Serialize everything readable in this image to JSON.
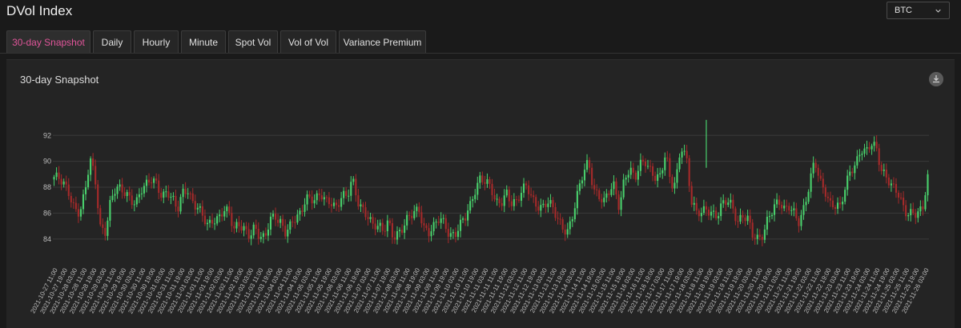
{
  "header": {
    "title": "DVol Index"
  },
  "asset_select": {
    "value": "BTC",
    "icon": "chevron-down-icon"
  },
  "tabs": [
    {
      "label": "30-day Snapshot",
      "active": true
    },
    {
      "label": "Daily",
      "active": false
    },
    {
      "label": "Hourly",
      "active": false
    },
    {
      "label": "Minute",
      "active": false
    },
    {
      "label": "Spot Vol",
      "active": false
    },
    {
      "label": "Vol of Vol",
      "active": false
    },
    {
      "label": "Variance Premium",
      "active": false
    }
  ],
  "panel": {
    "title": "30-day Snapshot",
    "download_icon": "download-icon"
  },
  "colors": {
    "accent": "#e0559a",
    "up": "#49d06c",
    "down": "#a52a2a",
    "grid": "#3a3a3a"
  },
  "chart_data": {
    "type": "candlestick",
    "title": "",
    "xlabel": "",
    "ylabel": "",
    "ylim": [
      83,
      93.5
    ],
    "y_ticks": [
      84,
      86,
      88,
      90,
      92
    ],
    "grid": true,
    "x_tick_labels": [
      "2021-10-27 11:00",
      "2021-10-27 19:00",
      "2021-10-28 03:00",
      "2021-10-28 11:00",
      "2021-10-28 19:00",
      "2021-10-29 03:00",
      "2021-10-29 11:00",
      "2021-10-29 19:00",
      "2021-10-30 03:00",
      "2021-10-30 11:00",
      "2021-10-30 19:00",
      "2021-10-31 03:00",
      "2021-10-31 11:00",
      "2021-10-31 19:00",
      "2021-11-01 03:00",
      "2021-11-01 11:00",
      "2021-11-01 19:00",
      "2021-11-02 03:00",
      "2021-11-02 11:00",
      "2021-11-02 19:00",
      "2021-11-03 03:00",
      "2021-11-03 11:00",
      "2021-11-03 19:00",
      "2021-11-04 03:00",
      "2021-11-04 11:00",
      "2021-11-04 19:00",
      "2021-11-05 03:00",
      "2021-11-05 11:00",
      "2021-11-05 19:00",
      "2021-11-06 03:00",
      "2021-11-06 11:00",
      "2021-11-06 19:00",
      "2021-11-07 03:00",
      "2021-11-07 11:00",
      "2021-11-07 19:00",
      "2021-11-08 03:00",
      "2021-11-08 11:00",
      "2021-11-08 19:00",
      "2021-11-09 03:00",
      "2021-11-09 11:00",
      "2021-11-09 19:00",
      "2021-11-10 03:00",
      "2021-11-10 11:00",
      "2021-11-10 19:00",
      "2021-11-11 03:00",
      "2021-11-11 11:00",
      "2021-11-11 19:00",
      "2021-11-12 03:00",
      "2021-11-12 11:00",
      "2021-11-12 19:00",
      "2021-11-13 03:00",
      "2021-11-13 11:00",
      "2021-11-13 19:00",
      "2021-11-14 03:00",
      "2021-11-14 11:00",
      "2021-11-14 19:00",
      "2021-11-15 03:00",
      "2021-11-15 11:00",
      "2021-11-15 19:00",
      "2021-11-16 03:00",
      "2021-11-16 11:00",
      "2021-11-16 19:00",
      "2021-11-17 03:00",
      "2021-11-17 11:00",
      "2021-11-17 19:00",
      "2021-11-18 03:00",
      "2021-11-18 11:00",
      "2021-11-18 19:00",
      "2021-11-19 03:00",
      "2021-11-19 11:00",
      "2021-11-19 19:00",
      "2021-11-20 03:00",
      "2021-11-20 11:00",
      "2021-11-20 19:00",
      "2021-11-21 03:00",
      "2021-11-21 11:00",
      "2021-11-21 19:00",
      "2021-11-22 03:00",
      "2021-11-22 11:00",
      "2021-11-22 19:00",
      "2021-11-23 03:00",
      "2021-11-23 11:00",
      "2021-11-23 19:00",
      "2021-11-24 03:00",
      "2021-11-24 11:00",
      "2021-11-24 19:00",
      "2021-11-25 03:00",
      "2021-11-25 11:00",
      "2021-11-25 19:00",
      "2021-11-26 03:00"
    ],
    "close_anchors": [
      88.8,
      88.5,
      88.0,
      87.5,
      86.5,
      86.2,
      87.5,
      90.0,
      88.5,
      85.0,
      84.8,
      87.0,
      87.8,
      87.6,
      87.5,
      87.2,
      87.0,
      87.8,
      88.0,
      88.5,
      88.3,
      87.5,
      87.8,
      87.0,
      86.0,
      87.5,
      88.0,
      87.0,
      86.5,
      85.5,
      84.8,
      85.5,
      85.8,
      86.5,
      86.0,
      84.5,
      85.0,
      84.9,
      84.5,
      85.0,
      84.0,
      83.8,
      85.5,
      86.0,
      85.5,
      84.5,
      84.8,
      85.5,
      86.0,
      87.5,
      87.2,
      87.0,
      87.2,
      86.8,
      87.0,
      86.6,
      87.5,
      87.0,
      88.5,
      87.0,
      86.5,
      86.0,
      85.0,
      84.8,
      84.5,
      85.5,
      84.4,
      84.5,
      84.8,
      85.5,
      86.0,
      86.5,
      85.0,
      84.5,
      84.8,
      85.5,
      85.2,
      84.5,
      84.5,
      85.0,
      85.5,
      86.5,
      88.0,
      89.0,
      88.5,
      87.8,
      86.5,
      86.8,
      87.8,
      87.0,
      86.8,
      87.5,
      88.0,
      87.2,
      86.8,
      86.5,
      86.8,
      86.2,
      85.5,
      85.0,
      84.8,
      86.0,
      87.5,
      89.0,
      90.0,
      88.0,
      87.5,
      86.8,
      87.5,
      88.0,
      86.5,
      89.0,
      89.5,
      88.5,
      89.5,
      90.0,
      89.5,
      89.0,
      88.8,
      90.5,
      88.0,
      88.5,
      91.5,
      90.5,
      86.8,
      85.8,
      86.0,
      86.5,
      86.2,
      85.8,
      86.5,
      86.8,
      86.5,
      85.5,
      86.0,
      85.5,
      84.0,
      83.8,
      84.5,
      86.0,
      86.5,
      86.8,
      86.0,
      86.5,
      86.2,
      85.5,
      86.5,
      88.0,
      90.0,
      88.5,
      88.0,
      86.8,
      86.5,
      86.2,
      88.0,
      89.5,
      90.0,
      91.0,
      90.5,
      91.2,
      91.0,
      89.5,
      89.0,
      88.0,
      87.5,
      86.5,
      86.0,
      86.3,
      86.1,
      86.2,
      88.5
    ],
    "series": [
      {
        "name": "",
        "color_up": "#49d06c",
        "color_down": "#a52a2a"
      }
    ]
  }
}
